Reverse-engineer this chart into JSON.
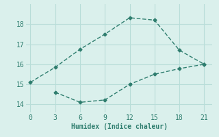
{
  "xlabel": "Humidex (Indice chaleur)",
  "line1_x": [
    0,
    3,
    6,
    9,
    12,
    15,
    18,
    21
  ],
  "line1_y": [
    15.1,
    15.85,
    16.75,
    17.5,
    18.32,
    18.2,
    16.7,
    16.0
  ],
  "line2_x": [
    3,
    6,
    9,
    12,
    15,
    18,
    21
  ],
  "line2_y": [
    14.6,
    14.1,
    14.22,
    15.0,
    15.5,
    15.78,
    16.0
  ],
  "line_color": "#2e7d6e",
  "bg_color": "#daf0ec",
  "grid_color": "#b8ddd8",
  "xlim": [
    -0.5,
    22
  ],
  "ylim": [
    13.6,
    19.0
  ],
  "xticks": [
    0,
    3,
    6,
    9,
    12,
    15,
    18,
    21
  ],
  "yticks": [
    14,
    15,
    16,
    17,
    18
  ],
  "marker": "D",
  "marker_size": 2.5,
  "linewidth": 1.0
}
